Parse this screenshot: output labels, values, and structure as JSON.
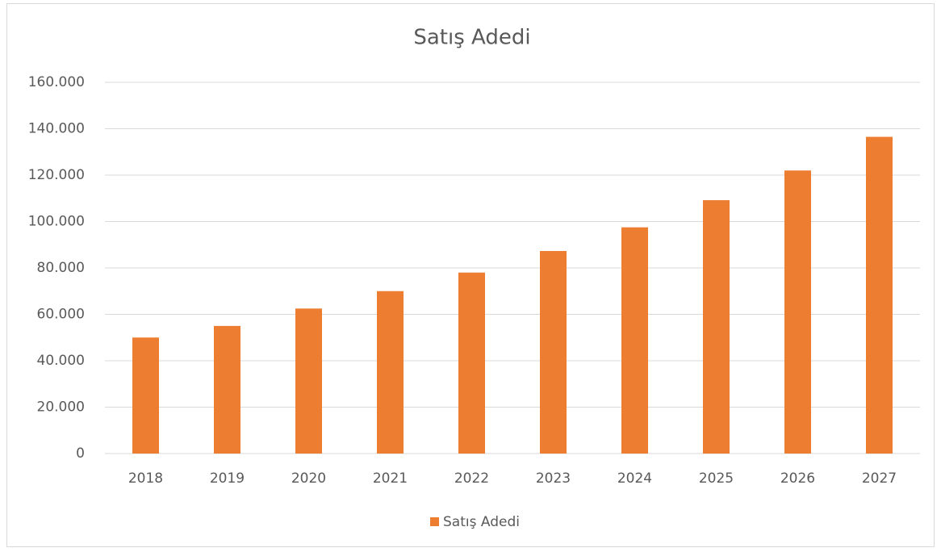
{
  "chart_data": {
    "type": "bar",
    "title": "Satış Adedi",
    "categories": [
      "2018",
      "2019",
      "2020",
      "2021",
      "2022",
      "2023",
      "2024",
      "2025",
      "2026",
      "2027"
    ],
    "series": [
      {
        "name": "Satış Adedi",
        "color": "#ed7d31",
        "values": [
          50000,
          55000,
          62500,
          70000,
          78000,
          87300,
          97500,
          109200,
          122000,
          136500
        ]
      }
    ],
    "ylim": [
      0,
      160000
    ],
    "yticks": [
      0,
      {
        "value": 20000,
        "label": "20.000"
      },
      {
        "value": 40000,
        "label": "40.000"
      },
      {
        "value": 60000,
        "label": "60.000"
      },
      {
        "value": 80000,
        "label": "80.000"
      },
      {
        "value": 100000,
        "label": "100.000"
      },
      {
        "value": 120000,
        "label": "120.000"
      },
      {
        "value": 140000,
        "label": "140.000"
      },
      {
        "value": 160000,
        "label": "160.000"
      }
    ],
    "grid": true,
    "legend": "bottom"
  }
}
